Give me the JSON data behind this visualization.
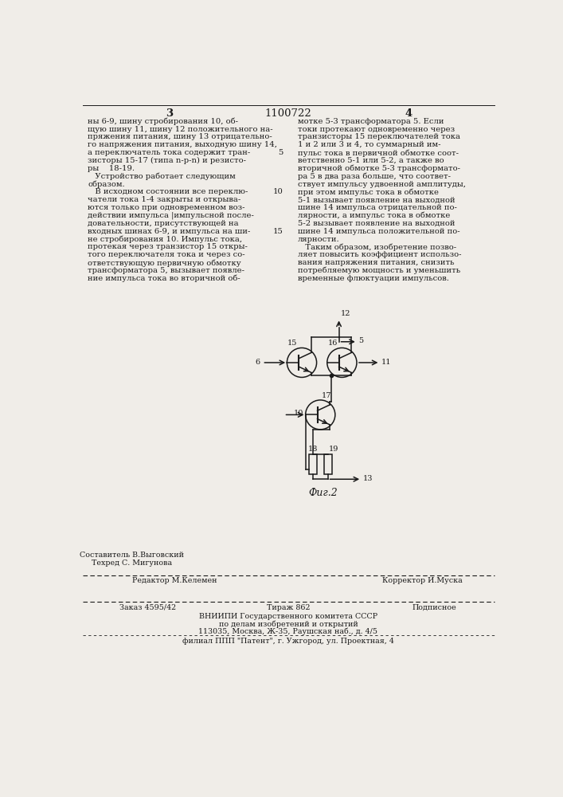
{
  "page_number_left": "3",
  "page_number_center": "1100722",
  "page_number_right": "4",
  "col1_text": [
    "ны 6-9, шину стробирования 10, об-",
    "щую шину 11, шину 12 положительного на-",
    "пряжения питания, шину 13 отрицательно-",
    "го напряжения питания, выходную шину 14,",
    "а переключатель тока содержит тран-",
    "зисторы 15-17 (типа n-p-n) и резисто-",
    "ры    18-19.",
    "   Устройство работает следующим",
    "образом.",
    "   В исходном состоянии все переклю-",
    "чатели тока 1-4 закрыты и открыва-",
    "ются только при одновременном воз-",
    "действии импульса |импульсной после-",
    "довательности, присутствующей на",
    "входных шинах 6-9, и импульса на ши-",
    "не стробирования 10. Импульс тока,",
    "протекая через транзистор 15 откры-",
    "того переключателя тока и через со-",
    "ответствующую первичную обмотку",
    "трансформатора 5, вызывает появле-",
    "ние импульса тока во вторичной об-"
  ],
  "col2_text": [
    "мотке 5-3 трансформатора 5. Если",
    "токи протекают одновременно через",
    "транзисторы 15 переключателей тока",
    "1 и 2 или 3 и 4, то суммарный им-",
    "пульс тока в первичной обмотке соот-",
    "ветственно 5-1 или 5-2, а также во",
    "вторичной обмотке 5-3 трансформато-",
    "ра 5 в два раза больше, что соответ-",
    "ствует импульсу удвоенной амплитуды,",
    "при этом импульс тока в обмотке",
    "5-1 вызывает появление на выходной",
    "шине 14 импульса отрицательной по-",
    "лярности, а импульс тока в обмотке",
    "5-2 вызывает появление на выходной",
    "шине 14 импульса положительной по-",
    "лярности.",
    "   Таким образом, изобретение позво-",
    "ляет повысить коэффициент использо-",
    "вания напряжения питания, снизить",
    "потребляемую мощность и уменьшить",
    "временные флюктуации импульсов."
  ],
  "line_numbers": [
    5,
    10,
    15
  ],
  "caption": "Фиг.2",
  "footer_editor": "Редактор М.Келемен",
  "footer_composer": "Составитель В.Выговский",
  "footer_corrector": "Корректор И.Муска",
  "footer_techred": "Техред С. Мигунова",
  "footer_order": "Заказ 4595/42",
  "footer_print": "Тираж 862",
  "footer_type": "Подписное",
  "footer_org1": "ВНИИПИ Государственного комитета СССР",
  "footer_org2": "по делам изобретений и открытий",
  "footer_org3": "113035, Москва, Ж-35, Раушская наб., д. 4/5",
  "footer_branch": "филиал ППП \"Патент\", г. Ужгород, ул. Проектная, 4",
  "bg_color": "#f0ede8",
  "text_color": "#1a1a1a",
  "font_size_main": 7.2,
  "font_size_header": 9.5,
  "font_size_footer": 6.8
}
